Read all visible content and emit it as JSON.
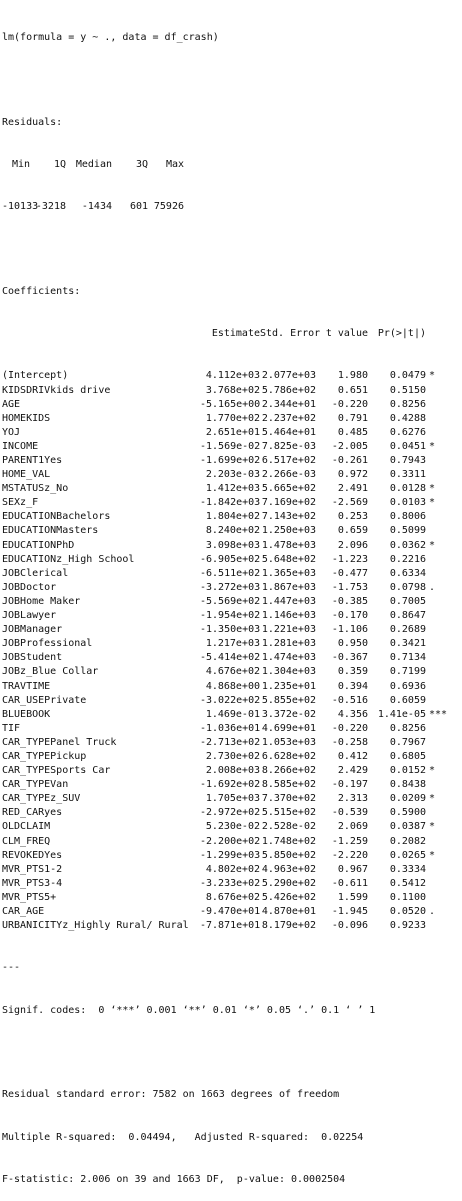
{
  "call": "lm(formula = y ~ ., data = df_crash)",
  "residuals": {
    "title": "Residuals:",
    "headers": [
      "Min",
      "1Q",
      "Median",
      "3Q",
      "Max"
    ],
    "values": [
      "-10133",
      "-3218",
      "-1434",
      "601",
      "75926"
    ]
  },
  "coefficients": {
    "title": "Coefficients:",
    "headers": [
      "Estimate",
      "Std. Error",
      "t value",
      "Pr(>|t|)"
    ],
    "rows": [
      {
        "name": "(Intercept)",
        "estimate": "4.112e+03",
        "std_error": "2.077e+03",
        "t_value": "1.980",
        "p_value": "0.0479",
        "signif": "*"
      },
      {
        "name": "KIDSDRIVkids drive",
        "estimate": "3.768e+02",
        "std_error": "5.786e+02",
        "t_value": "0.651",
        "p_value": "0.5150",
        "signif": ""
      },
      {
        "name": "AGE",
        "estimate": "-5.165e+00",
        "std_error": "2.344e+01",
        "t_value": "-0.220",
        "p_value": "0.8256",
        "signif": ""
      },
      {
        "name": "HOMEKIDS",
        "estimate": "1.770e+02",
        "std_error": "2.237e+02",
        "t_value": "0.791",
        "p_value": "0.4288",
        "signif": ""
      },
      {
        "name": "YOJ",
        "estimate": "2.651e+01",
        "std_error": "5.464e+01",
        "t_value": "0.485",
        "p_value": "0.6276",
        "signif": ""
      },
      {
        "name": "INCOME",
        "estimate": "-1.569e-02",
        "std_error": "7.825e-03",
        "t_value": "-2.005",
        "p_value": "0.0451",
        "signif": "*"
      },
      {
        "name": "PARENT1Yes",
        "estimate": "-1.699e+02",
        "std_error": "6.517e+02",
        "t_value": "-0.261",
        "p_value": "0.7943",
        "signif": ""
      },
      {
        "name": "HOME_VAL",
        "estimate": "2.203e-03",
        "std_error": "2.266e-03",
        "t_value": "0.972",
        "p_value": "0.3311",
        "signif": ""
      },
      {
        "name": "MSTATUSz_No",
        "estimate": "1.412e+03",
        "std_error": "5.665e+02",
        "t_value": "2.491",
        "p_value": "0.0128",
        "signif": "*"
      },
      {
        "name": "SEXz_F",
        "estimate": "-1.842e+03",
        "std_error": "7.169e+02",
        "t_value": "-2.569",
        "p_value": "0.0103",
        "signif": "*"
      },
      {
        "name": "EDUCATIONBachelors",
        "estimate": "1.804e+02",
        "std_error": "7.143e+02",
        "t_value": "0.253",
        "p_value": "0.8006",
        "signif": ""
      },
      {
        "name": "EDUCATIONMasters",
        "estimate": "8.240e+02",
        "std_error": "1.250e+03",
        "t_value": "0.659",
        "p_value": "0.5099",
        "signif": ""
      },
      {
        "name": "EDUCATIONPhD",
        "estimate": "3.098e+03",
        "std_error": "1.478e+03",
        "t_value": "2.096",
        "p_value": "0.0362",
        "signif": "*"
      },
      {
        "name": "EDUCATIONz_High School",
        "estimate": "-6.905e+02",
        "std_error": "5.648e+02",
        "t_value": "-1.223",
        "p_value": "0.2216",
        "signif": ""
      },
      {
        "name": "JOBClerical",
        "estimate": "-6.511e+02",
        "std_error": "1.365e+03",
        "t_value": "-0.477",
        "p_value": "0.6334",
        "signif": ""
      },
      {
        "name": "JOBDoctor",
        "estimate": "-3.272e+03",
        "std_error": "1.867e+03",
        "t_value": "-1.753",
        "p_value": "0.0798",
        "signif": "."
      },
      {
        "name": "JOBHome Maker",
        "estimate": "-5.569e+02",
        "std_error": "1.447e+03",
        "t_value": "-0.385",
        "p_value": "0.7005",
        "signif": ""
      },
      {
        "name": "JOBLawyer",
        "estimate": "-1.954e+02",
        "std_error": "1.146e+03",
        "t_value": "-0.170",
        "p_value": "0.8647",
        "signif": ""
      },
      {
        "name": "JOBManager",
        "estimate": "-1.350e+03",
        "std_error": "1.221e+03",
        "t_value": "-1.106",
        "p_value": "0.2689",
        "signif": ""
      },
      {
        "name": "JOBProfessional",
        "estimate": "1.217e+03",
        "std_error": "1.281e+03",
        "t_value": "0.950",
        "p_value": "0.3421",
        "signif": ""
      },
      {
        "name": "JOBStudent",
        "estimate": "-5.414e+02",
        "std_error": "1.474e+03",
        "t_value": "-0.367",
        "p_value": "0.7134",
        "signif": ""
      },
      {
        "name": "JOBz_Blue Collar",
        "estimate": "4.676e+02",
        "std_error": "1.304e+03",
        "t_value": "0.359",
        "p_value": "0.7199",
        "signif": ""
      },
      {
        "name": "TRAVTIME",
        "estimate": "4.868e+00",
        "std_error": "1.235e+01",
        "t_value": "0.394",
        "p_value": "0.6936",
        "signif": ""
      },
      {
        "name": "CAR_USEPrivate",
        "estimate": "-3.022e+02",
        "std_error": "5.855e+02",
        "t_value": "-0.516",
        "p_value": "0.6059",
        "signif": ""
      },
      {
        "name": "BLUEBOOK",
        "estimate": "1.469e-01",
        "std_error": "3.372e-02",
        "t_value": "4.356",
        "p_value": "1.41e-05",
        "signif": "***"
      },
      {
        "name": "TIF",
        "estimate": "-1.036e+01",
        "std_error": "4.699e+01",
        "t_value": "-0.220",
        "p_value": "0.8256",
        "signif": ""
      },
      {
        "name": "CAR_TYPEPanel Truck",
        "estimate": "-2.713e+02",
        "std_error": "1.053e+03",
        "t_value": "-0.258",
        "p_value": "0.7967",
        "signif": ""
      },
      {
        "name": "CAR_TYPEPickup",
        "estimate": "2.730e+02",
        "std_error": "6.628e+02",
        "t_value": "0.412",
        "p_value": "0.6805",
        "signif": ""
      },
      {
        "name": "CAR_TYPESports Car",
        "estimate": "2.008e+03",
        "std_error": "8.266e+02",
        "t_value": "2.429",
        "p_value": "0.0152",
        "signif": "*"
      },
      {
        "name": "CAR_TYPEVan",
        "estimate": "-1.692e+02",
        "std_error": "8.585e+02",
        "t_value": "-0.197",
        "p_value": "0.8438",
        "signif": ""
      },
      {
        "name": "CAR_TYPEz_SUV",
        "estimate": "1.705e+03",
        "std_error": "7.370e+02",
        "t_value": "2.313",
        "p_value": "0.0209",
        "signif": "*"
      },
      {
        "name": "RED_CARyes",
        "estimate": "-2.972e+02",
        "std_error": "5.515e+02",
        "t_value": "-0.539",
        "p_value": "0.5900",
        "signif": ""
      },
      {
        "name": "OLDCLAIM",
        "estimate": "5.230e-02",
        "std_error": "2.528e-02",
        "t_value": "2.069",
        "p_value": "0.0387",
        "signif": "*"
      },
      {
        "name": "CLM_FREQ",
        "estimate": "-2.200e+02",
        "std_error": "1.748e+02",
        "t_value": "-1.259",
        "p_value": "0.2082",
        "signif": ""
      },
      {
        "name": "REVOKEDYes",
        "estimate": "-1.299e+03",
        "std_error": "5.850e+02",
        "t_value": "-2.220",
        "p_value": "0.0265",
        "signif": "*"
      },
      {
        "name": "MVR_PTS1-2",
        "estimate": "4.802e+02",
        "std_error": "4.963e+02",
        "t_value": "0.967",
        "p_value": "0.3334",
        "signif": ""
      },
      {
        "name": "MVR_PTS3-4",
        "estimate": "-3.233e+02",
        "std_error": "5.290e+02",
        "t_value": "-0.611",
        "p_value": "0.5412",
        "signif": ""
      },
      {
        "name": "MVR_PTS5+",
        "estimate": "8.676e+02",
        "std_error": "5.426e+02",
        "t_value": "1.599",
        "p_value": "0.1100",
        "signif": ""
      },
      {
        "name": "CAR_AGE",
        "estimate": "-9.470e+01",
        "std_error": "4.870e+01",
        "t_value": "-1.945",
        "p_value": "0.0520",
        "signif": "."
      },
      {
        "name": "URBANICITYz_Highly Rural/ Rural",
        "estimate": "-7.871e+01",
        "std_error": "8.179e+02",
        "t_value": "-0.096",
        "p_value": "0.9233",
        "signif": ""
      }
    ]
  },
  "separator": "---",
  "signif_codes": "Signif. codes:  0 ‘***’ 0.001 ‘**’ 0.01 ‘*’ 0.05 ‘.’ 0.1 ‘ ’ 1",
  "footer": {
    "rse": "Residual standard error: 7582 on 1663 degrees of freedom",
    "r_squared": "Multiple R-squared:  0.04494,\tAdjusted R-squared:  0.02254",
    "f_stat": "F-statistic: 2.006 on 39 and 1663 DF,  p-value: 0.0002504"
  }
}
